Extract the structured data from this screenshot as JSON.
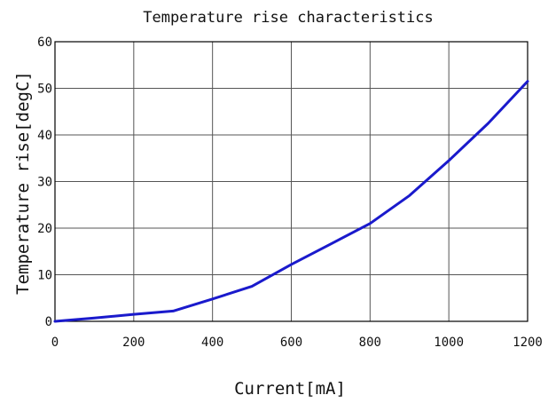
{
  "chart_data": {
    "type": "line",
    "title": "Temperature rise characteristics",
    "xlabel": "Current[mA]",
    "ylabel": "Temperature rise[degC]",
    "xlim": [
      0,
      1200
    ],
    "ylim": [
      0,
      60
    ],
    "xticks": [
      0,
      200,
      400,
      600,
      800,
      1000,
      1200
    ],
    "yticks": [
      0,
      10,
      20,
      30,
      40,
      50,
      60
    ],
    "grid": true,
    "series": [
      {
        "color": "#1a1acc",
        "x": [
          0,
          100,
          200,
          300,
          400,
          500,
          600,
          700,
          800,
          900,
          1000,
          1100,
          1200
        ],
        "y": [
          0,
          0.7,
          1.5,
          2.2,
          4.8,
          7.5,
          12.2,
          16.6,
          21,
          27,
          34.5,
          42.5,
          51.5
        ]
      }
    ]
  }
}
